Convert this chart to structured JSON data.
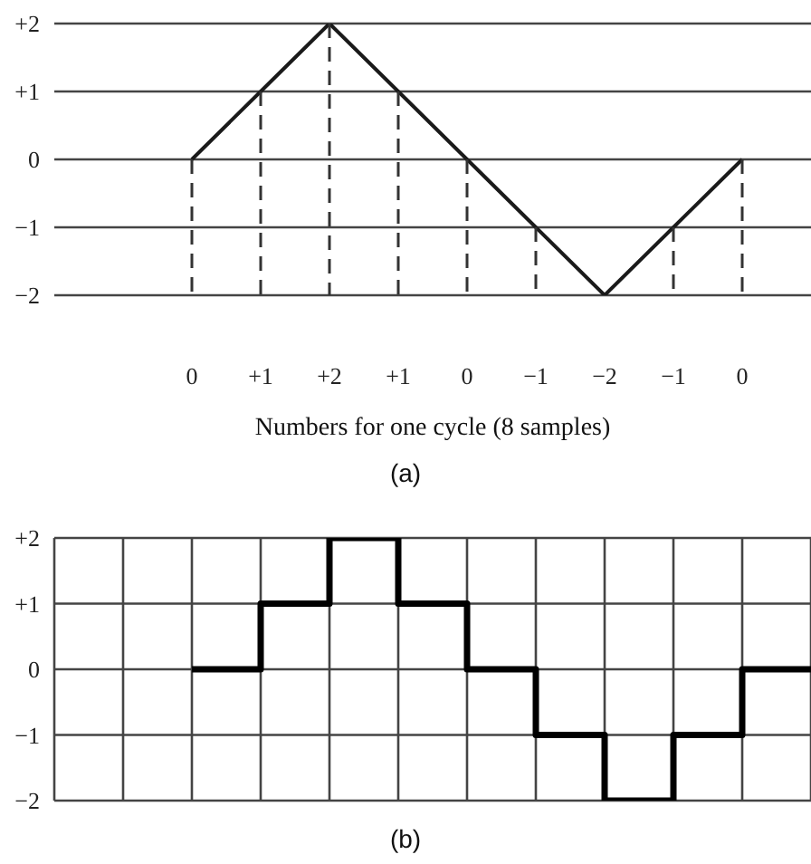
{
  "chart_data": [
    {
      "type": "line",
      "xlabel": "Numbers for one cycle (8 samples)",
      "annotations": [
        "(a)"
      ],
      "categories": [
        null,
        null,
        "0",
        "+1",
        "+2",
        "+1",
        "0",
        "−1",
        "−2",
        "−1",
        "0",
        null
      ],
      "series": [
        {
          "color": "#1a1a1a",
          "values": [
            null,
            null,
            0,
            1,
            2,
            1,
            0,
            -1,
            -2,
            -1,
            0,
            null
          ]
        }
      ],
      "ylim": [
        -2,
        2
      ],
      "yticks": [
        {
          "value": -2,
          "label": "−2"
        },
        {
          "value": -1,
          "label": "−1"
        },
        0,
        {
          "value": 1,
          "label": "+1"
        },
        {
          "value": 2,
          "label": "+2"
        }
      ],
      "grid": true,
      "marker": "none"
    },
    {
      "type": "step",
      "annotations": [
        "(b)"
      ],
      "categories": [
        null,
        null,
        null,
        null,
        null,
        null,
        null,
        null,
        null,
        null,
        null,
        null
      ],
      "series": [
        {
          "color": "#000000",
          "values": [
            null,
            null,
            0,
            1,
            2,
            1,
            0,
            -1,
            -2,
            -1,
            0,
            0
          ]
        }
      ],
      "ylim": [
        -2,
        2
      ],
      "yticks": [
        {
          "value": -2,
          "label": "−2"
        },
        {
          "value": -1,
          "label": "−1"
        },
        0,
        {
          "value": 1,
          "label": "+1"
        },
        {
          "value": 2,
          "label": "+2"
        }
      ],
      "grid": true,
      "tick_labels": "y",
      "marker": "none"
    }
  ]
}
